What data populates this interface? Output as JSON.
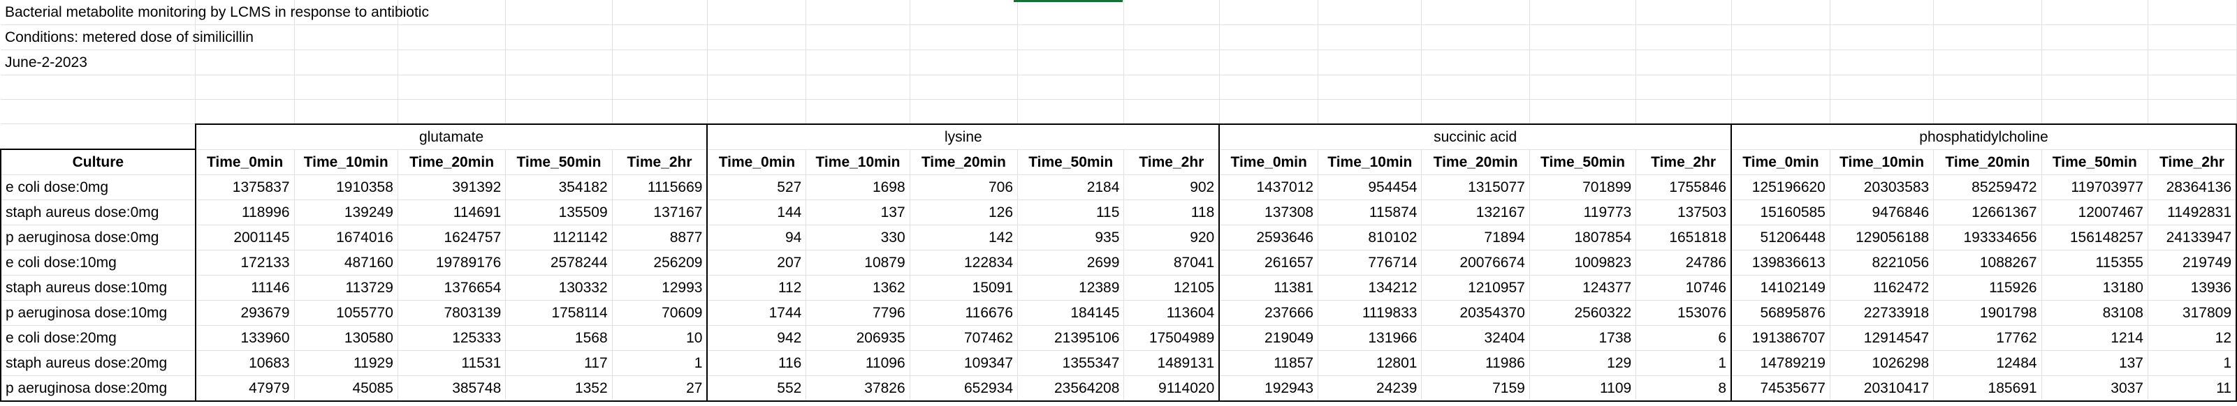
{
  "notes": [
    "Bacterial metabolite monitoring by LCMS in response to antibiotic",
    "Conditions: metered dose of similicillin",
    "June-2-2023"
  ],
  "table": {
    "culture_header": "Culture",
    "groups": [
      "glutamate",
      "lysine",
      "succinic acid",
      "phosphatidylcholine"
    ],
    "time_headers": [
      "Time_0min",
      "Time_10min",
      "Time_20min",
      "Time_50min",
      "Time_2hr"
    ],
    "rows": [
      {
        "culture": "e coli dose:0mg",
        "values": [
          "1375837",
          "1910358",
          "391392",
          "354182",
          "1115669",
          "527",
          "1698",
          "706",
          "2184",
          "902",
          "1437012",
          "954454",
          "1315077",
          "701899",
          "1755846",
          "125196620",
          "20303583",
          "85259472",
          "119703977",
          "28364136"
        ]
      },
      {
        "culture": "staph aureus dose:0mg",
        "values": [
          "118996",
          "139249",
          "114691",
          "135509",
          "137167",
          "144",
          "137",
          "126",
          "115",
          "118",
          "137308",
          "115874",
          "132167",
          "119773",
          "137503",
          "15160585",
          "9476846",
          "12661367",
          "12007467",
          "11492831"
        ]
      },
      {
        "culture": "p aeruginosa dose:0mg",
        "values": [
          "2001145",
          "1674016",
          "1624757",
          "1121142",
          "8877",
          "94",
          "330",
          "142",
          "935",
          "920",
          "2593646",
          "810102",
          "71894",
          "1807854",
          "1651818",
          "51206448",
          "129056188",
          "193334656",
          "156148257",
          "24133947"
        ]
      },
      {
        "culture": "e coli dose:10mg",
        "values": [
          "172133",
          "487160",
          "19789176",
          "2578244",
          "256209",
          "207",
          "10879",
          "122834",
          "2699",
          "87041",
          "261657",
          "776714",
          "20076674",
          "1009823",
          "24786",
          "139836613",
          "8221056",
          "1088267",
          "115355",
          "219749"
        ]
      },
      {
        "culture": "staph aureus dose:10mg",
        "values": [
          "11146",
          "113729",
          "1376654",
          "130332",
          "12993",
          "112",
          "1362",
          "15091",
          "12389",
          "12105",
          "11381",
          "134212",
          "1210957",
          "124377",
          "10746",
          "14102149",
          "1162472",
          "115926",
          "13180",
          "13936"
        ]
      },
      {
        "culture": "p aeruginosa dose:10mg",
        "values": [
          "293679",
          "1055770",
          "7803139",
          "1758114",
          "70609",
          "1744",
          "7796",
          "116676",
          "184145",
          "113604",
          "237666",
          "1119833",
          "20354370",
          "2560322",
          "153076",
          "56895876",
          "22733918",
          "1901798",
          "83108",
          "317809"
        ]
      },
      {
        "culture": "e coli dose:20mg",
        "values": [
          "133960",
          "130580",
          "125333",
          "1568",
          "10",
          "942",
          "206935",
          "707462",
          "21395106",
          "17504989",
          "219049",
          "131966",
          "32404",
          "1738",
          "6",
          "191386707",
          "12914547",
          "17762",
          "1214",
          "12"
        ]
      },
      {
        "culture": "staph aureus dose:20mg",
        "values": [
          "10683",
          "11929",
          "11531",
          "117",
          "1",
          "116",
          "11096",
          "109347",
          "1355347",
          "1489131",
          "11857",
          "12801",
          "11986",
          "129",
          "1",
          "14789219",
          "1026298",
          "12484",
          "137",
          "1"
        ]
      },
      {
        "culture": "p aeruginosa dose:20mg",
        "values": [
          "47979",
          "45085",
          "385748",
          "1352",
          "27",
          "552",
          "37826",
          "652934",
          "23564208",
          "9114020",
          "192943",
          "24239",
          "7159",
          "1109",
          "8",
          "74535677",
          "20310417",
          "185691",
          "3037",
          "11"
        ]
      }
    ]
  }
}
